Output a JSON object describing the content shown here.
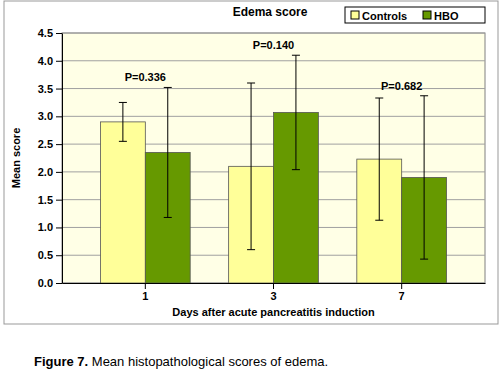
{
  "chart_data": {
    "type": "bar",
    "title": "Edema score",
    "x_label": "Days after acute pancreatitis induction",
    "y_label": "Mean score",
    "caption": "Figure 7. Mean histopathological scores of edema.",
    "categories": [
      "1",
      "3",
      "7"
    ],
    "series": [
      {
        "name": "Controls",
        "color": "#ffff99",
        "values": [
          2.9,
          2.1,
          2.23
        ],
        "errors": [
          0.35,
          1.5,
          1.1
        ]
      },
      {
        "name": "HBO",
        "color": "#669900",
        "values": [
          2.35,
          3.07,
          1.9
        ],
        "errors": [
          1.17,
          1.03,
          1.47
        ]
      }
    ],
    "annotations": [
      "P=0.336",
      "P=0.140",
      "P=0.682"
    ],
    "ylim": [
      0,
      4.5
    ],
    "yticks": [
      {
        "value": 0,
        "label": "0.0"
      },
      0.5,
      {
        "value": 1,
        "label": "1.0"
      },
      1.5,
      {
        "value": 2,
        "label": "2.0"
      },
      2.5,
      {
        "value": 3,
        "label": "3.0"
      },
      3.5,
      {
        "value": 4,
        "label": "4.0"
      },
      4.5
    ],
    "grid": true,
    "legend": "top-right"
  }
}
